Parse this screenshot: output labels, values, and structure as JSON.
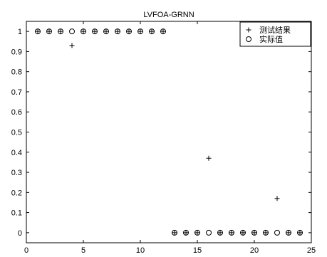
{
  "chart_data": {
    "type": "scatter",
    "title": "LVFOA-GRNN",
    "xlabel": "",
    "ylabel": "",
    "xlim": [
      0,
      25
    ],
    "ylim": [
      -0.05,
      1.05
    ],
    "xticks": [
      0,
      5,
      10,
      15,
      20,
      25
    ],
    "yticks": [
      0,
      0.1,
      0.2,
      0.3,
      0.4,
      0.5,
      0.6,
      0.7,
      0.8,
      0.9,
      1
    ],
    "legend_position": "top-right",
    "grid": false,
    "series": [
      {
        "name": "测试结果",
        "marker": "plus",
        "x": [
          1,
          2,
          3,
          4,
          5,
          6,
          7,
          8,
          9,
          10,
          11,
          12,
          13,
          14,
          15,
          16,
          17,
          18,
          19,
          20,
          21,
          22,
          23,
          24
        ],
        "y": [
          1,
          1,
          1,
          0.93,
          1,
          1,
          1,
          1,
          1,
          1,
          1,
          1,
          0,
          0,
          0,
          0.37,
          0,
          0,
          0,
          0,
          0,
          0.17,
          0,
          0
        ]
      },
      {
        "name": "实际值",
        "marker": "circle",
        "x": [
          1,
          2,
          3,
          4,
          5,
          6,
          7,
          8,
          9,
          10,
          11,
          12,
          13,
          14,
          15,
          16,
          17,
          18,
          19,
          20,
          21,
          22,
          23,
          24
        ],
        "y": [
          1,
          1,
          1,
          1,
          1,
          1,
          1,
          1,
          1,
          1,
          1,
          1,
          0,
          0,
          0,
          0,
          0,
          0,
          0,
          0,
          0,
          0,
          0,
          0
        ]
      }
    ]
  }
}
